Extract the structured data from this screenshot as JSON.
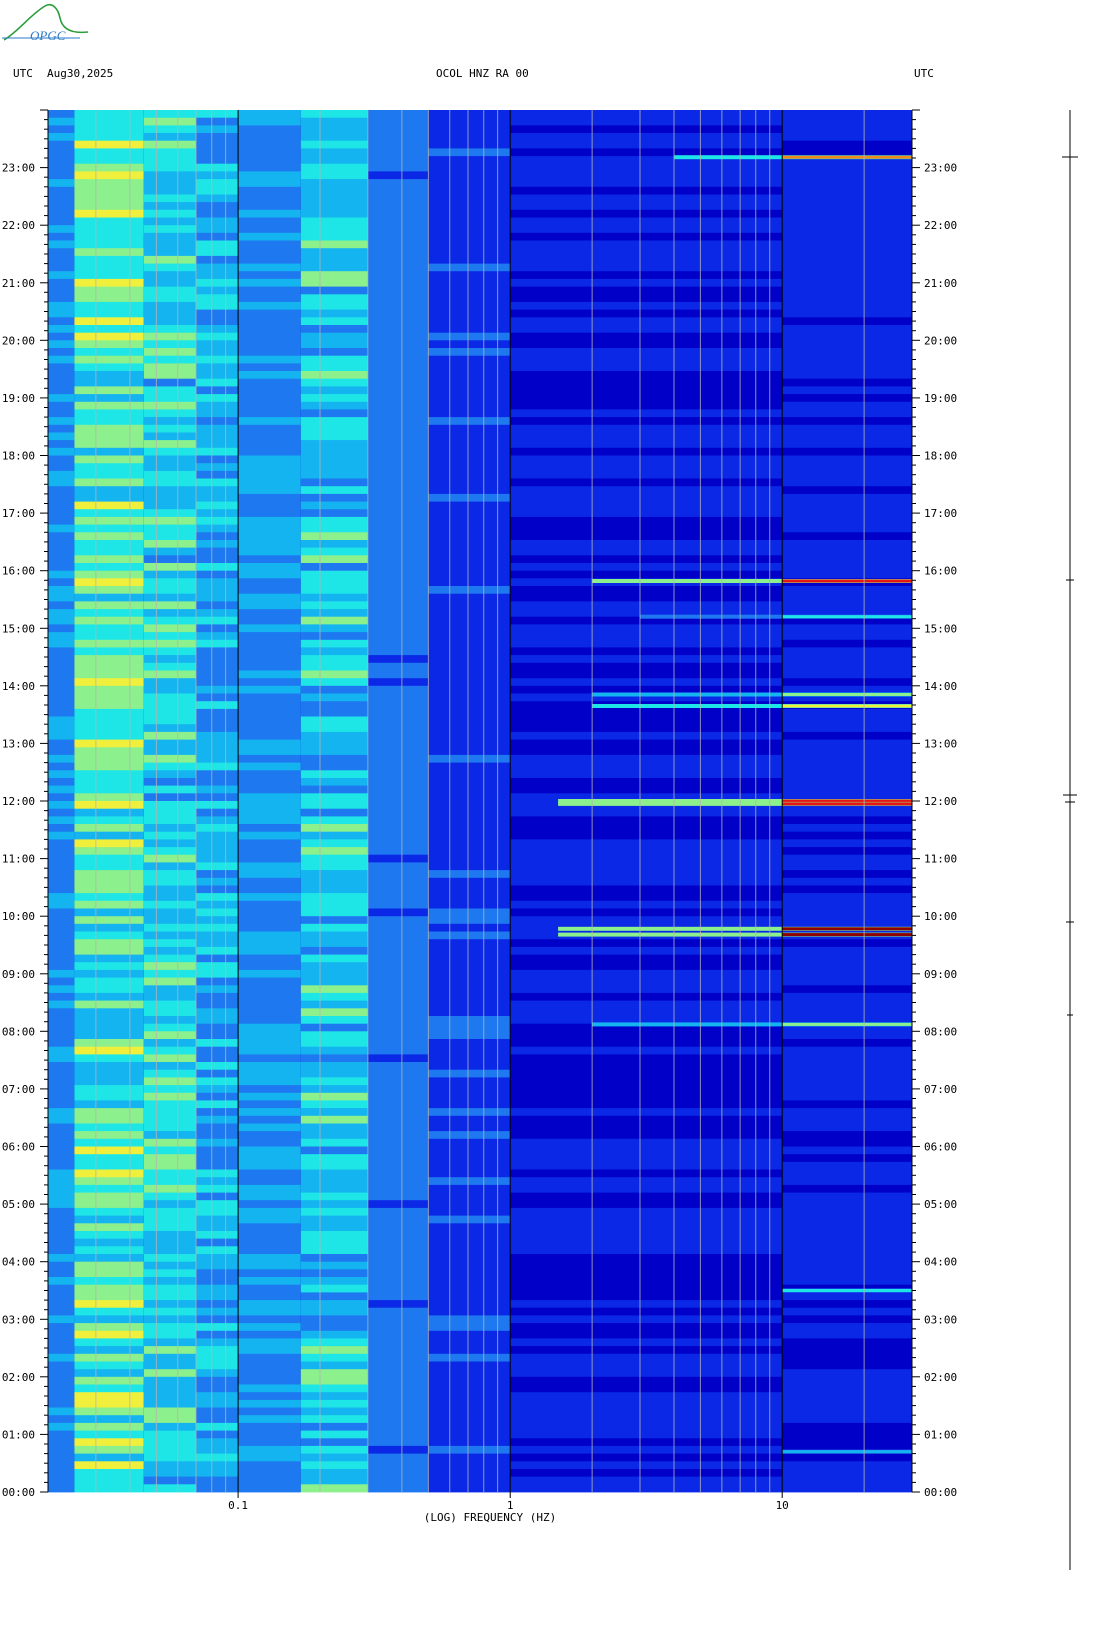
{
  "logo": {
    "text": "OPGC",
    "color": "#2a9d3a"
  },
  "header": {
    "left_tz": "UTC",
    "date": "Aug30,2025",
    "station": "OCOL HNZ RA 00",
    "right_tz": "UTC"
  },
  "chart_data": {
    "type": "heatmap",
    "title": "OCOL HNZ RA 00",
    "date": "Aug30,2025",
    "xlabel": "(LOG) FREQUENCY (HZ)",
    "ylabel": "UTC",
    "x_scale": "log",
    "xlim": [
      0.02,
      30
    ],
    "ylim_hours": [
      0,
      24
    ],
    "x_ticks": [
      {
        "value": 0.1,
        "label": "0.1"
      },
      {
        "value": 1,
        "label": "1"
      },
      {
        "value": 10,
        "label": "10"
      }
    ],
    "y_ticks": [
      {
        "hour": 0,
        "label": "00:00"
      },
      {
        "hour": 1,
        "label": "01:00"
      },
      {
        "hour": 2,
        "label": "02:00"
      },
      {
        "hour": 3,
        "label": "03:00"
      },
      {
        "hour": 4,
        "label": "04:00"
      },
      {
        "hour": 5,
        "label": "05:00"
      },
      {
        "hour": 6,
        "label": "06:00"
      },
      {
        "hour": 7,
        "label": "07:00"
      },
      {
        "hour": 8,
        "label": "08:00"
      },
      {
        "hour": 9,
        "label": "09:00"
      },
      {
        "hour": 10,
        "label": "10:00"
      },
      {
        "hour": 11,
        "label": "11:00"
      },
      {
        "hour": 12,
        "label": "12:00"
      },
      {
        "hour": 13,
        "label": "13:00"
      },
      {
        "hour": 14,
        "label": "14:00"
      },
      {
        "hour": 15,
        "label": "15:00"
      },
      {
        "hour": 16,
        "label": "16:00"
      },
      {
        "hour": 17,
        "label": "17:00"
      },
      {
        "hour": 18,
        "label": "18:00"
      },
      {
        "hour": 19,
        "label": "19:00"
      },
      {
        "hour": 20,
        "label": "20:00"
      },
      {
        "hour": 21,
        "label": "21:00"
      },
      {
        "hour": 22,
        "label": "22:00"
      },
      {
        "hour": 23,
        "label": "23:00"
      }
    ],
    "colormap": [
      "#0000c8",
      "#0a28e6",
      "#1e78f0",
      "#14b4f0",
      "#1ee6e6",
      "#8cf08c",
      "#f0f03c",
      "#f08c1e",
      "#e61414",
      "#8c0000"
    ],
    "energy_events": [
      {
        "hour": 23.18,
        "fmin": 4,
        "fmax": 30,
        "level": 0.8
      },
      {
        "hour": 15.82,
        "fmin": 2,
        "fmax": 30,
        "level": 0.85
      },
      {
        "hour": 15.2,
        "fmin": 3,
        "fmax": 30,
        "level": 0.45
      },
      {
        "hour": 13.85,
        "fmin": 2,
        "fmax": 30,
        "level": 0.6
      },
      {
        "hour": 13.65,
        "fmin": 2,
        "fmax": 30,
        "level": 0.65
      },
      {
        "hour": 12.0,
        "fmin": 1.5,
        "fmax": 30,
        "level": 0.85
      },
      {
        "hour": 11.95,
        "fmin": 1.5,
        "fmax": 30,
        "level": 0.9
      },
      {
        "hour": 9.78,
        "fmin": 1.5,
        "fmax": 30,
        "level": 1.0
      },
      {
        "hour": 9.68,
        "fmin": 1.5,
        "fmax": 30,
        "level": 0.95
      },
      {
        "hour": 8.12,
        "fmin": 2,
        "fmax": 30,
        "level": 0.55
      },
      {
        "hour": 3.5,
        "fmin": 10,
        "fmax": 30,
        "level": 0.4
      },
      {
        "hour": 0.7,
        "fmin": 10,
        "fmax": 30,
        "level": 0.3
      }
    ]
  }
}
